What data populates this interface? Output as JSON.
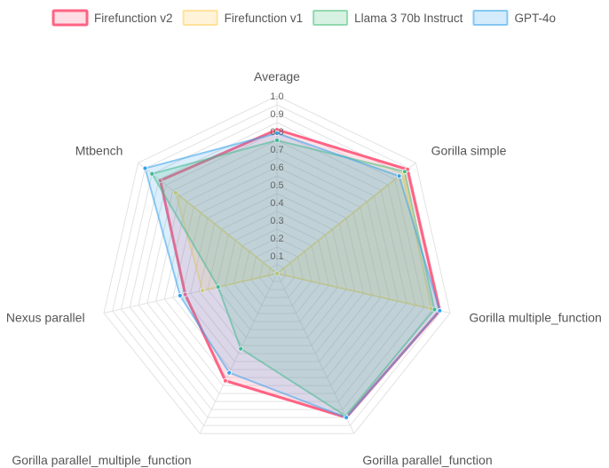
{
  "chart_data": {
    "type": "radar",
    "axes": [
      "Average",
      "Gorilla simple",
      "Gorilla multiple_function",
      "Gorilla parallel_function",
      "Gorilla parallel_multiple_function",
      "Nexus parallel",
      "Mtbench"
    ],
    "r_range": [
      0,
      1.0
    ],
    "ticks": [
      "0.1",
      "0.2",
      "0.3",
      "0.4",
      "0.5",
      "0.6",
      "0.7",
      "0.8",
      "0.9",
      "1.0"
    ],
    "grid": true,
    "legend_position": "top",
    "series": [
      {
        "name": "Firefunction v2",
        "color": "#ff6384",
        "values": [
          0.81,
          0.94,
          0.94,
          0.9,
          0.67,
          0.53,
          0.84
        ]
      },
      {
        "name": "Firefunction v1",
        "color": "#ffcd56",
        "values": [
          0.0,
          0.91,
          0.89,
          0.0,
          0.0,
          0.43,
          0.73
        ]
      },
      {
        "name": "Llama 3 70b Instruct",
        "color": "#4bc07b",
        "values": [
          0.75,
          0.92,
          0.91,
          0.89,
          0.47,
          0.34,
          0.9
        ]
      },
      {
        "name": "GPT-4o",
        "color": "#36a2eb",
        "values": [
          0.79,
          0.88,
          0.94,
          0.9,
          0.62,
          0.56,
          0.95
        ]
      }
    ]
  }
}
